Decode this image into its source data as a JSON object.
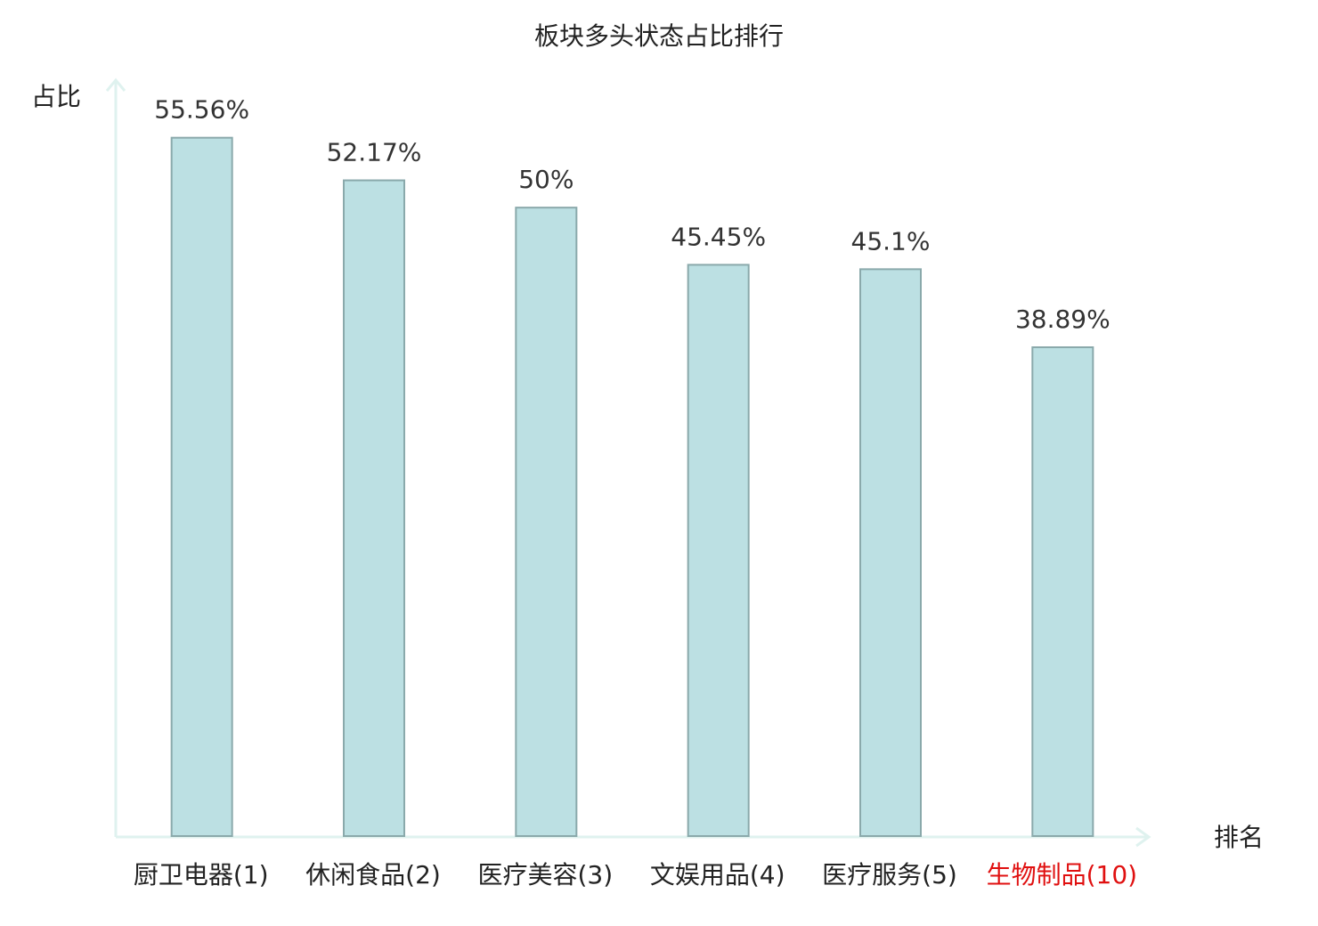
{
  "chart_data": {
    "type": "bar",
    "title": "板块多头状态占比排行",
    "y_label": "占比",
    "x_label": "排名",
    "categories": [
      "厨卫电器(1)",
      "休闲食品(2)",
      "医疗美容(3)",
      "文娱用品(4)",
      "医疗服务(5)",
      "生物制品(10)"
    ],
    "category_colors": [
      "#222222",
      "#222222",
      "#222222",
      "#222222",
      "#222222",
      "#e01010"
    ],
    "values": [
      55.56,
      52.17,
      50,
      45.45,
      45.1,
      38.89
    ],
    "value_labels": [
      "55.56%",
      "52.17%",
      "50%",
      "45.45%",
      "45.1%",
      "38.89%"
    ],
    "color": "#bce0e3",
    "edge_color": "#8aa9ab",
    "ylim": [
      0,
      60
    ]
  }
}
